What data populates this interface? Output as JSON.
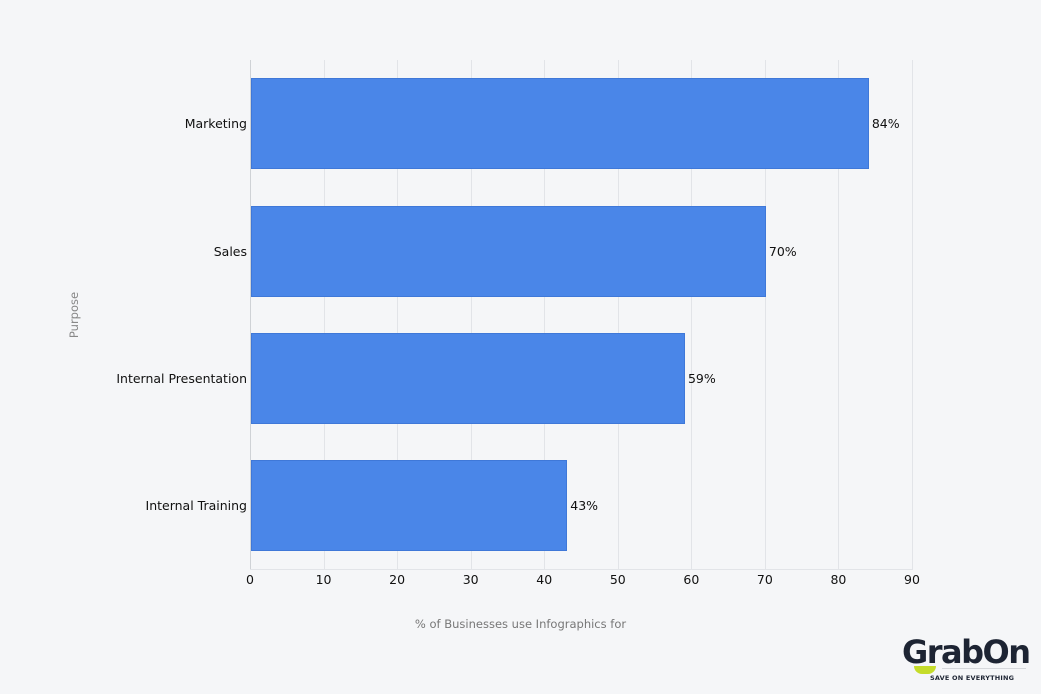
{
  "chart_data": {
    "type": "bar",
    "orientation": "horizontal",
    "title": "",
    "xlabel": "% of Businesses use Infographics for",
    "ylabel": "Purpose",
    "categories": [
      "Marketing",
      "Sales",
      "Internal Presentation",
      "Internal Training"
    ],
    "values": [
      84,
      70,
      59,
      43
    ],
    "value_labels": [
      "84%",
      "70%",
      "59%",
      "43%"
    ],
    "xlim": [
      0,
      90
    ],
    "xticks": [
      "0",
      "10",
      "20",
      "30",
      "40",
      "50",
      "60",
      "70",
      "80",
      "90"
    ],
    "grid": true,
    "bar_color": "#4a86e8",
    "legend": null
  },
  "logo": {
    "brand": "GrabOn",
    "tagline": "SAVE ON EVERYTHING",
    "accent_color": "#c5dc2a"
  }
}
